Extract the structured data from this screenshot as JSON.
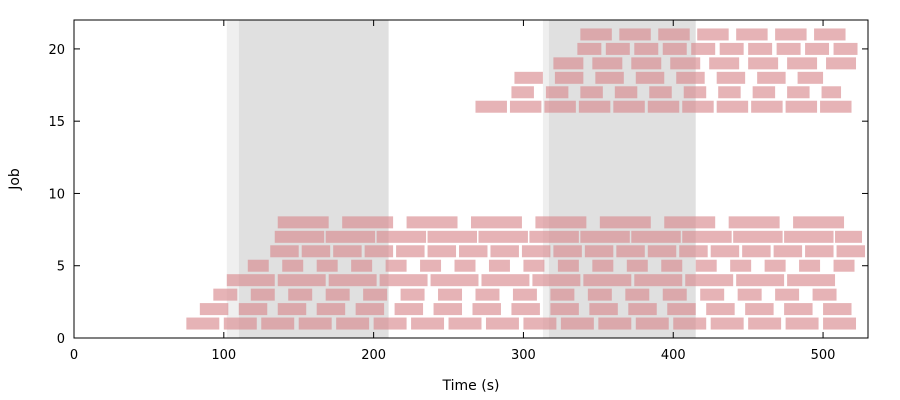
{
  "chart_data": {
    "type": "gantt",
    "xlabel": "Time (s)",
    "ylabel": "Job",
    "xlim": [
      0,
      530
    ],
    "ylim": [
      0,
      22
    ],
    "x_ticks": [
      0,
      100,
      200,
      300,
      400,
      500
    ],
    "y_ticks": [
      0,
      5,
      10,
      15,
      20
    ],
    "grid": false,
    "colors": {
      "bar": "#d98a8f",
      "shade_light": "#efefef",
      "shade_dark": "#e0e0e0",
      "axis": "#000000"
    },
    "shaded_regions": [
      {
        "start": 102,
        "end": 110,
        "tone": "light"
      },
      {
        "start": 110,
        "end": 210,
        "tone": "dark"
      },
      {
        "start": 313,
        "end": 317,
        "tone": "light"
      },
      {
        "start": 317,
        "end": 415,
        "tone": "dark"
      }
    ],
    "rows": [
      {
        "job": 1,
        "start": 75,
        "end": 522,
        "bar": 22,
        "gap": 3
      },
      {
        "job": 2,
        "start": 84,
        "end": 520,
        "bar": 19,
        "gap": 7
      },
      {
        "job": 3,
        "start": 93,
        "end": 518,
        "bar": 16,
        "gap": 9
      },
      {
        "job": 4,
        "start": 102,
        "end": 508,
        "bar": 32,
        "gap": 2
      },
      {
        "job": 5,
        "start": 116,
        "end": 526,
        "bar": 14,
        "gap": 9
      },
      {
        "job": 6,
        "start": 131,
        "end": 528,
        "bar": 19,
        "gap": 2
      },
      {
        "job": 7,
        "start": 134,
        "end": 526,
        "bar": 33,
        "gap": 1
      },
      {
        "job": 8,
        "start": 136,
        "end": 514,
        "bar": 34,
        "gap": 9
      },
      {
        "job": 16,
        "start": 268,
        "end": 520,
        "bar": 21,
        "gap": 2
      },
      {
        "job": 17,
        "start": 292,
        "end": 512,
        "bar": 15,
        "gap": 8
      },
      {
        "job": 18,
        "start": 294,
        "end": 500,
        "bar": 19,
        "gap": 8
      },
      {
        "job": 19,
        "start": 320,
        "end": 528,
        "bar": 20,
        "gap": 6
      },
      {
        "job": 20,
        "start": 336,
        "end": 523,
        "bar": 16,
        "gap": 3
      },
      {
        "job": 21,
        "start": 338,
        "end": 515,
        "bar": 21,
        "gap": 5
      }
    ]
  }
}
